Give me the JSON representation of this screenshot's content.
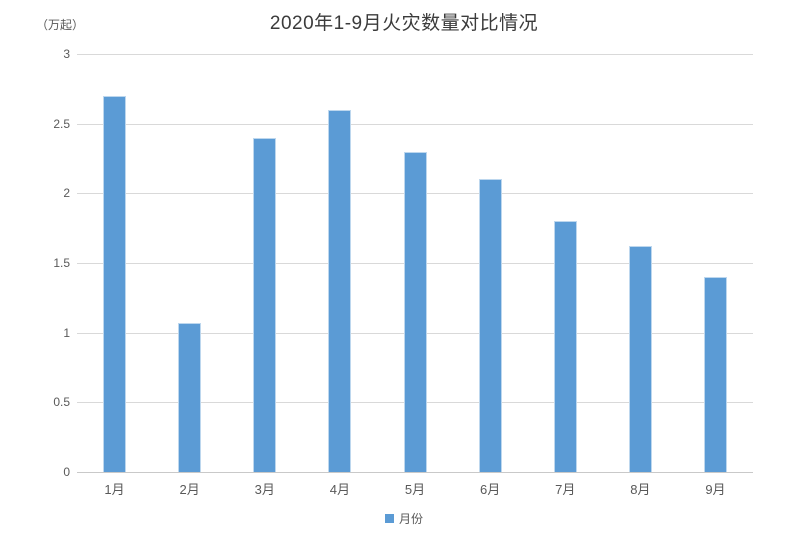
{
  "chart_data": {
    "type": "bar",
    "title": "2020年1-9月火灾数量对比情况",
    "unit_label": "（万起）",
    "categories": [
      "1月",
      "2月",
      "3月",
      "4月",
      "5月",
      "6月",
      "7月",
      "8月",
      "9月"
    ],
    "values": [
      2.7,
      1.07,
      2.4,
      2.6,
      2.3,
      2.1,
      1.8,
      1.62,
      1.4
    ],
    "series_name": "月份",
    "xlabel": "",
    "ylabel": "（万起）",
    "ylim": [
      0,
      3
    ],
    "yticks": [
      3,
      2.5,
      2,
      1.5,
      1,
      0.5,
      0
    ],
    "grid": true,
    "legend_position": "bottom",
    "bar_color": "#5b9bd5",
    "gridline_color": "#d9d9d9",
    "text_color": "#595959",
    "title_color": "#3b3b3b"
  },
  "legend": {
    "label": "月份"
  }
}
